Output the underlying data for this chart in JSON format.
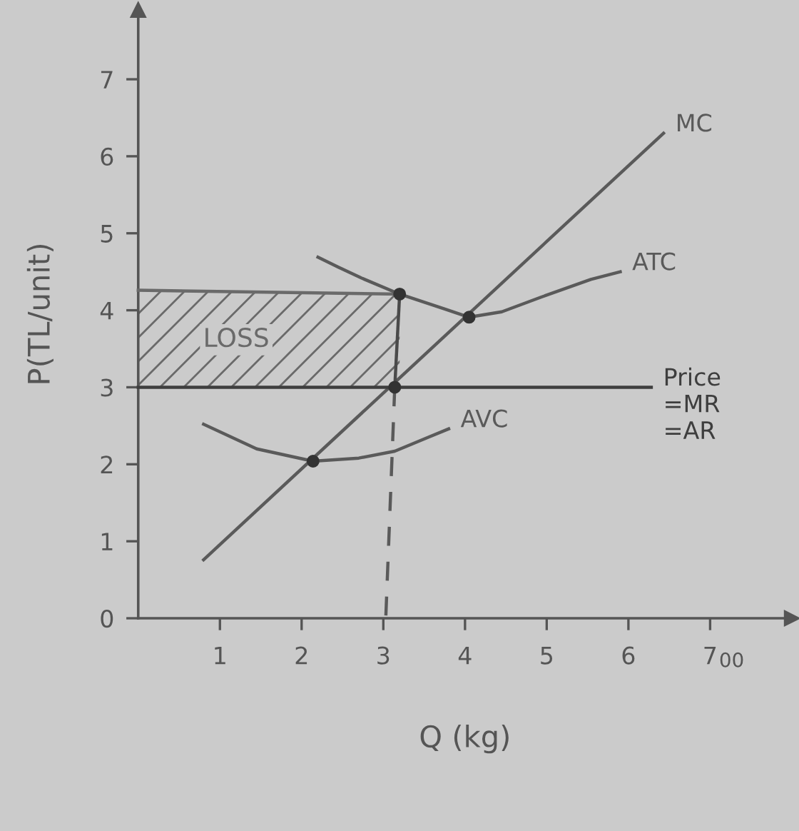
{
  "chart_data": {
    "type": "line",
    "xlabel": "Q (kg)",
    "ylabel": "P(TL/unit)",
    "xlim": [
      0,
      8
    ],
    "ylim": [
      0,
      7.9
    ],
    "xticks": [
      1,
      2,
      3,
      4,
      5,
      6,
      7
    ],
    "yticks": [
      0,
      1,
      2,
      3,
      4,
      5,
      6,
      7
    ],
    "annotations": [
      "00"
    ],
    "series": [
      {
        "name": "LOSS",
        "color": "#6a6a6a",
        "x": [
          0,
          3.2
        ],
        "values": [
          4.26,
          4.21
        ],
        "lower": [
          3,
          3
        ],
        "upper": [
          4.26,
          4.21
        ]
      },
      {
        "name": "MC",
        "color": "#5a5a5a",
        "x": [
          0.8,
          6.43
        ],
        "values": [
          0.76,
          6.3
        ]
      },
      {
        "name": "ATC",
        "color": "#5a5a5a",
        "x": [
          2.2,
          2.45,
          2.73,
          3.2,
          3.74,
          4.05,
          4.45,
          4.93,
          5.54,
          5.9
        ],
        "values": [
          4.69,
          4.56,
          4.42,
          4.21,
          4.02,
          3.91,
          3.98,
          4.17,
          4.4,
          4.5
        ]
      },
      {
        "name": "AVC",
        "color": "#5a5a5a",
        "x": [
          0.8,
          1.45,
          2.14,
          2.7,
          3.14,
          3.55,
          3.8
        ],
        "values": [
          2.52,
          2.2,
          2.04,
          2.08,
          2.17,
          2.35,
          2.46
        ]
      },
      {
        "name": "Price\n=MR\n=AR",
        "color": "#3e3e3e",
        "x": [
          0,
          6.28
        ],
        "values": [
          3,
          3
        ]
      },
      {
        "color": "#4a4a4a",
        "x": [
          3.2,
          3.14
        ],
        "values": [
          4.21,
          3.0
        ]
      },
      {
        "color": "#5a5a5a",
        "line_style": "dashed",
        "x": [
          3.14,
          3.03
        ],
        "values": [
          3.0,
          0
        ]
      },
      {
        "type": "scatter",
        "color": "#333333",
        "marker": "circle",
        "x": [
          3.2,
          3.14,
          4.05,
          2.14
        ],
        "values": [
          4.21,
          3.0,
          3.91,
          2.04
        ]
      }
    ]
  }
}
